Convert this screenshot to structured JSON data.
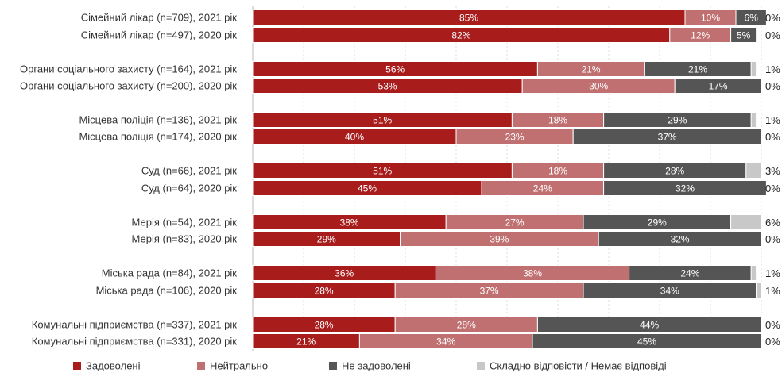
{
  "chart_data": {
    "type": "bar",
    "orientation": "horizontal",
    "stacked": true,
    "percent_scale": true,
    "xlim": [
      0,
      100
    ],
    "grid": true,
    "legend_position": "bottom",
    "categories": [
      "Сімейний лікар (n=709), 2021 рік",
      "Сімейний лікар (n=497), 2020 рік",
      "Органи соціального захисту (n=164), 2021 рік",
      "Органи соціального захисту (n=200), 2020 рік",
      "Місцева поліція (n=136), 2021 рік",
      "Місцева поліція (n=174), 2020 рік",
      "Суд (n=66), 2021 рік",
      "Суд (n=64), 2020 рік",
      "Мерія (n=54), 2021 рік",
      "Мерія (n=83), 2020 рік",
      "Міська рада (n=84), 2021 рік",
      "Міська рада (n=106), 2020 рік",
      "Комунальні підприємства (n=337), 2021 рік",
      "Комунальні підприємства (n=331), 2020 рік"
    ],
    "series": [
      {
        "name": "Задоволені",
        "color": "#a81c1c",
        "values": [
          85,
          82,
          56,
          53,
          51,
          40,
          51,
          45,
          38,
          29,
          36,
          28,
          28,
          21
        ]
      },
      {
        "name": "Нейтрально",
        "color": "#c07070",
        "values": [
          10,
          12,
          21,
          30,
          18,
          23,
          18,
          24,
          27,
          39,
          38,
          37,
          28,
          34
        ]
      },
      {
        "name": "Не задоволені",
        "color": "#555555",
        "values": [
          6,
          5,
          21,
          17,
          29,
          37,
          28,
          32,
          29,
          32,
          24,
          34,
          44,
          45
        ]
      },
      {
        "name": "Складно відповісти / Немає відповіді",
        "color": "#c8c8c8",
        "values": [
          0,
          0,
          1,
          0,
          1,
          0,
          3,
          0,
          6,
          0,
          1,
          1,
          0,
          0
        ]
      }
    ],
    "segment_labels": [
      [
        "85%",
        "10%",
        "6%",
        ""
      ],
      [
        "82%",
        "12%",
        "5%",
        ""
      ],
      [
        "56%",
        "21%",
        "21%",
        ""
      ],
      [
        "53%",
        "30%",
        "17%",
        ""
      ],
      [
        "51%",
        "18%",
        "29%",
        ""
      ],
      [
        "40%",
        "23%",
        "37%",
        ""
      ],
      [
        "51%",
        "18%",
        "28%",
        ""
      ],
      [
        "45%",
        "24%",
        "32%",
        ""
      ],
      [
        "38%",
        "27%",
        "29%",
        ""
      ],
      [
        "29%",
        "39%",
        "32%",
        ""
      ],
      [
        "36%",
        "38%",
        "24%",
        ""
      ],
      [
        "28%",
        "37%",
        "34%",
        ""
      ],
      [
        "28%",
        "28%",
        "44%",
        ""
      ],
      [
        "21%",
        "34%",
        "45%",
        ""
      ]
    ],
    "end_labels": [
      "0%",
      "0%",
      "1%",
      "0%",
      "1%",
      "0%",
      "3%",
      "0%",
      "6%",
      "0%",
      "1%",
      "1%",
      "0%",
      "0%"
    ]
  }
}
